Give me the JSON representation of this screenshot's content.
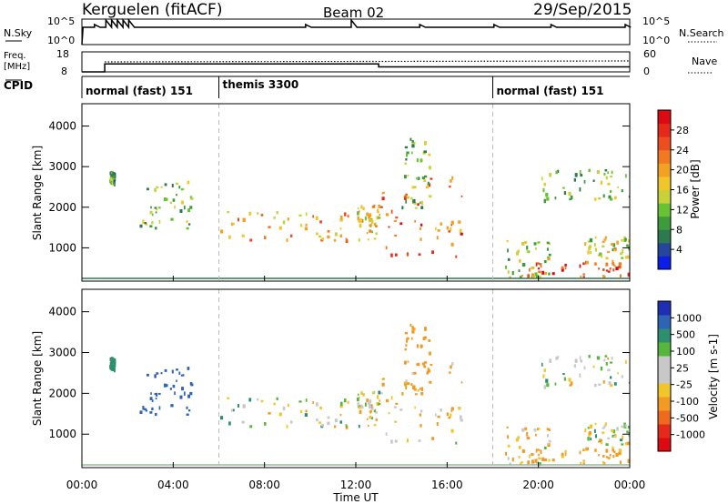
{
  "header": {
    "station": "Kerguelen (fitACF)",
    "beam": "Beam 02",
    "date": "29/Sep/2015"
  },
  "top_panel": {
    "left_label": "N.Sky",
    "left_ticks": [
      "10^5",
      "10^0"
    ],
    "right_ticks": [
      "10^5",
      "10^0"
    ],
    "right_label": "N.Search"
  },
  "freq_panel": {
    "left_label_line1": "Freq.",
    "left_label_line2": "[MHz]",
    "left_ticks": [
      "18",
      "8"
    ],
    "right_ticks": [
      "60",
      "0"
    ],
    "right_label": "Nave"
  },
  "cpid": {
    "label": "CPID",
    "segments": [
      {
        "name": "normal (fast) 151",
        "start_hour": 0
      },
      {
        "name": "themis 3300",
        "start_hour": 6
      },
      {
        "name": "normal (fast) 151",
        "start_hour": 18
      }
    ]
  },
  "axes": {
    "xlabel": "Time UT",
    "xticks": [
      "00:00",
      "04:00",
      "08:00",
      "12:00",
      "16:00",
      "20:00",
      "00:00"
    ],
    "x_range_hours": [
      0,
      24
    ],
    "ylabel": "Slant Range [km]",
    "yticks": [
      "1000",
      "2000",
      "3000",
      "4000"
    ],
    "y_range_km": [
      180,
      4550
    ]
  },
  "power_colorbar": {
    "label": "Power [dB]",
    "ticks": [
      "4",
      "8",
      "12",
      "16",
      "20",
      "24",
      "28"
    ],
    "colors": [
      "#0a1ee6",
      "#25469c",
      "#2e7a50",
      "#3d9b3c",
      "#67c234",
      "#c7d23a",
      "#f0c62a",
      "#f3a024",
      "#f17a21",
      "#ec4e1f",
      "#e52a1c",
      "#dc0a12"
    ]
  },
  "velocity_colorbar": {
    "label": "Velocity [m s-1]",
    "ticks": [
      "1000",
      "500",
      "100",
      "25",
      "-25",
      "-100",
      "-500",
      "-1000"
    ],
    "colors": [
      "#1f2fb4",
      "#2e64b6",
      "#2e8f6e",
      "#57b63c",
      "#c8c8c8",
      "#c8c8c8",
      "#f0c62a",
      "#f39a24",
      "#ee6a1f",
      "#e52a1c",
      "#dc0a12"
    ]
  },
  "chart_data": {
    "type": "heatmap",
    "title": "Kerguelen (fitACF)",
    "xlabel": "Time UT",
    "ylabel": "Slant Range [km]",
    "xlim_hours": [
      0,
      24
    ],
    "ylim_km": [
      180,
      4550
    ],
    "mode_change_hours": [
      6,
      18
    ],
    "freq_mhz_segments": [
      {
        "t0": 0.0,
        "t1": 1.0,
        "mhz": 8.0
      },
      {
        "t0": 1.0,
        "t1": 13.0,
        "mhz": 12.0
      },
      {
        "t0": 13.0,
        "t1": 24.0,
        "mhz": 10.5
      }
    ],
    "echo_regions": [
      {
        "t0": 1.2,
        "t1": 1.4,
        "r0": 2600,
        "r1": 2900,
        "power": 8,
        "velocity": 200
      },
      {
        "t0": 2.5,
        "t1": 4.8,
        "r0": 1400,
        "r1": 2700,
        "power": 10,
        "velocity": 400
      },
      {
        "t0": 6.0,
        "t1": 12.0,
        "r0": 1200,
        "r1": 2000,
        "power": 18,
        "velocity": 0
      },
      {
        "t0": 12.0,
        "t1": 13.0,
        "r0": 1200,
        "r1": 2100,
        "power": 16,
        "velocity": 0
      },
      {
        "t0": 13.0,
        "t1": 16.8,
        "r0": 800,
        "r1": 2800,
        "power": 22,
        "velocity": -50
      },
      {
        "t0": 14.0,
        "t1": 15.2,
        "r0": 2000,
        "r1": 3800,
        "power": 10,
        "velocity": -150
      },
      {
        "t0": 18.5,
        "t1": 20.5,
        "r0": 300,
        "r1": 1200,
        "power": 12,
        "velocity": -50
      },
      {
        "t0": 19.5,
        "t1": 24.0,
        "r0": 300,
        "r1": 700,
        "power": 24,
        "velocity": -100
      },
      {
        "t0": 20.0,
        "t1": 24.0,
        "r0": 2200,
        "r1": 2950,
        "power": 10,
        "velocity": 0
      },
      {
        "t0": 22.0,
        "t1": 24.0,
        "r0": 700,
        "r1": 1300,
        "power": 14,
        "velocity": 0
      }
    ]
  }
}
